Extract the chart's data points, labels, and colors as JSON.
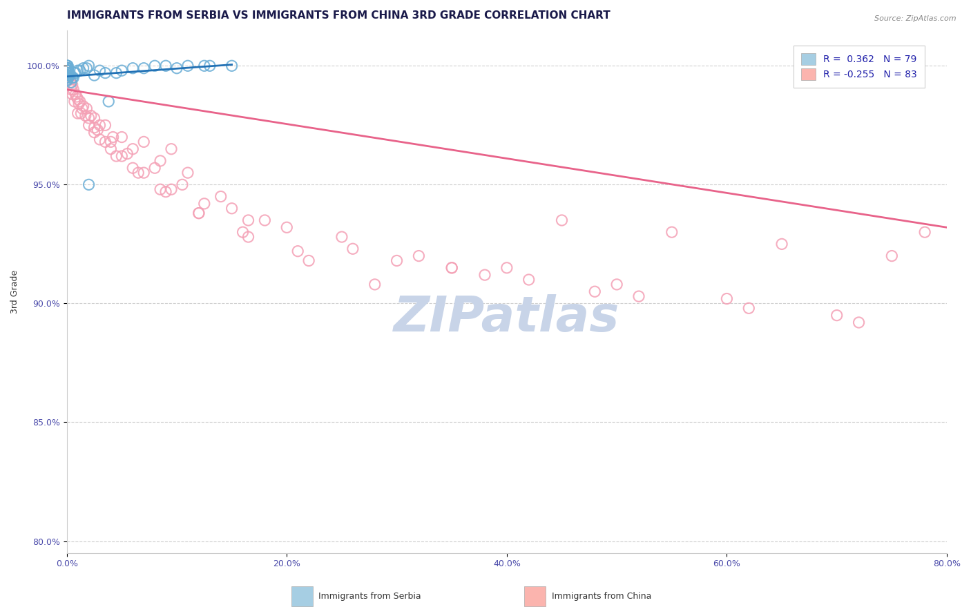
{
  "title": "IMMIGRANTS FROM SERBIA VS IMMIGRANTS FROM CHINA 3RD GRADE CORRELATION CHART",
  "source_text": "Source: ZipAtlas.com",
  "ylabel": "3rd Grade",
  "xlim": [
    0.0,
    80.0
  ],
  "ylim": [
    79.5,
    101.5
  ],
  "xticks": [
    0.0,
    20.0,
    40.0,
    60.0,
    80.0
  ],
  "yticks": [
    80.0,
    85.0,
    90.0,
    95.0,
    100.0
  ],
  "xticklabels": [
    "0.0%",
    "20.0%",
    "40.0%",
    "60.0%",
    "80.0%"
  ],
  "yticklabels": [
    "80.0%",
    "85.0%",
    "90.0%",
    "95.0%",
    "100.0%"
  ],
  "serbia_color": "#6baed6",
  "china_color": "#f4a0b5",
  "serbia_line_color": "#2171b5",
  "china_line_color": "#e8638a",
  "background_color": "#ffffff",
  "watermark_text": "ZIPatlas",
  "legend_serbia_label": "R =  0.362   N = 79",
  "legend_china_label": "R = -0.255   N = 83",
  "legend_serbia_color": "#a6cee3",
  "legend_china_color": "#fbb4ae",
  "serbia_x": [
    0.02,
    0.03,
    0.04,
    0.05,
    0.06,
    0.07,
    0.08,
    0.09,
    0.1,
    0.11,
    0.02,
    0.03,
    0.04,
    0.05,
    0.06,
    0.07,
    0.08,
    0.09,
    0.1,
    0.11,
    0.02,
    0.03,
    0.04,
    0.05,
    0.06,
    0.07,
    0.08,
    0.09,
    0.1,
    0.11,
    0.02,
    0.03,
    0.04,
    0.05,
    0.06,
    0.07,
    0.08,
    0.09,
    0.1,
    0.11,
    0.02,
    0.03,
    0.04,
    0.05,
    0.06,
    0.07,
    0.08,
    0.09,
    0.1,
    0.11,
    0.15,
    0.2,
    0.3,
    0.5,
    0.7,
    1.0,
    1.5,
    2.0,
    3.0,
    4.5,
    6.0,
    8.0,
    10.0,
    12.5,
    15.0,
    0.4,
    0.6,
    0.8,
    1.2,
    1.8,
    2.5,
    3.5,
    5.0,
    7.0,
    9.0,
    11.0,
    13.0,
    2.0,
    3.8
  ],
  "serbia_y": [
    99.9,
    100.0,
    99.8,
    99.7,
    99.9,
    100.0,
    99.8,
    99.9,
    99.7,
    99.8,
    99.6,
    99.5,
    99.7,
    99.8,
    99.6,
    99.5,
    99.9,
    100.0,
    99.8,
    99.7,
    99.9,
    100.0,
    99.7,
    99.8,
    99.9,
    99.6,
    99.5,
    99.9,
    99.8,
    99.7,
    99.5,
    99.6,
    99.8,
    99.9,
    99.7,
    99.5,
    99.6,
    99.8,
    99.9,
    99.7,
    99.4,
    99.5,
    99.6,
    99.7,
    99.8,
    99.9,
    99.4,
    99.5,
    99.6,
    99.7,
    99.8,
    99.7,
    99.6,
    99.5,
    99.7,
    99.8,
    99.9,
    100.0,
    99.8,
    99.7,
    99.9,
    100.0,
    99.9,
    100.0,
    100.0,
    99.3,
    99.5,
    99.7,
    99.8,
    99.9,
    99.6,
    99.7,
    99.8,
    99.9,
    100.0,
    100.0,
    100.0,
    95.0,
    98.5
  ],
  "china_x": [
    0.2,
    0.5,
    0.8,
    1.2,
    1.8,
    2.5,
    3.5,
    5.0,
    7.0,
    9.5,
    0.3,
    0.6,
    1.0,
    1.5,
    2.2,
    3.0,
    4.2,
    6.0,
    8.5,
    11.0,
    0.4,
    0.9,
    1.4,
    2.0,
    2.8,
    4.0,
    5.5,
    8.0,
    10.5,
    14.0,
    0.5,
    1.1,
    1.7,
    2.5,
    3.5,
    5.0,
    7.0,
    9.5,
    12.5,
    16.5,
    0.7,
    1.3,
    2.0,
    3.0,
    4.5,
    6.5,
    9.0,
    12.0,
    16.0,
    21.0,
    1.0,
    2.5,
    4.0,
    6.0,
    8.5,
    12.0,
    16.5,
    22.0,
    28.0,
    15.0,
    20.0,
    26.0,
    35.0,
    45.0,
    55.0,
    65.0,
    75.0,
    18.0,
    25.0,
    32.0,
    40.0,
    50.0,
    60.0,
    70.0,
    30.0,
    38.0,
    48.0,
    35.0,
    42.0,
    52.0,
    62.0,
    72.0,
    78.0
  ],
  "china_y": [
    99.5,
    99.2,
    98.8,
    98.5,
    98.2,
    97.8,
    97.5,
    97.0,
    96.8,
    96.5,
    99.3,
    99.0,
    98.6,
    98.3,
    97.9,
    97.5,
    97.0,
    96.5,
    96.0,
    95.5,
    99.0,
    98.7,
    98.2,
    97.8,
    97.3,
    96.8,
    96.3,
    95.7,
    95.0,
    94.5,
    98.8,
    98.4,
    97.9,
    97.4,
    96.8,
    96.2,
    95.5,
    94.8,
    94.2,
    93.5,
    98.5,
    98.0,
    97.5,
    96.9,
    96.2,
    95.5,
    94.7,
    93.8,
    93.0,
    92.2,
    98.0,
    97.2,
    96.5,
    95.7,
    94.8,
    93.8,
    92.8,
    91.8,
    90.8,
    94.0,
    93.2,
    92.3,
    91.5,
    93.5,
    93.0,
    92.5,
    92.0,
    93.5,
    92.8,
    92.0,
    91.5,
    90.8,
    90.2,
    89.5,
    91.8,
    91.2,
    90.5,
    91.5,
    91.0,
    90.3,
    89.8,
    89.2,
    93.0
  ],
  "serbia_trendline_x": [
    0.0,
    15.0
  ],
  "serbia_trendline_y": [
    99.55,
    100.05
  ],
  "china_trendline_x": [
    0.0,
    80.0
  ],
  "china_trendline_y": [
    99.0,
    93.2
  ],
  "grid_color": "#d0d0d0",
  "title_fontsize": 11,
  "axis_fontsize": 9,
  "tick_fontsize": 9,
  "watermark_color": "#c8d4e8",
  "watermark_fontsize": 52,
  "dot_size": 120
}
